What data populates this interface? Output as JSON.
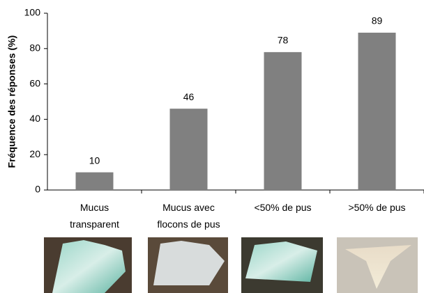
{
  "chart_data": {
    "type": "bar",
    "y_label": "Fréquence des réponses (%)",
    "categories": [
      "Mucus transparent",
      "Mucus avec flocons de pus",
      "<50% de pus",
      ">50% de pus"
    ],
    "values": [
      10,
      46,
      78,
      89
    ],
    "color": "#808080",
    "ylim": [
      0,
      100
    ],
    "yticks": [
      0,
      20,
      40,
      60,
      80,
      100
    ],
    "grid": false
  }
}
